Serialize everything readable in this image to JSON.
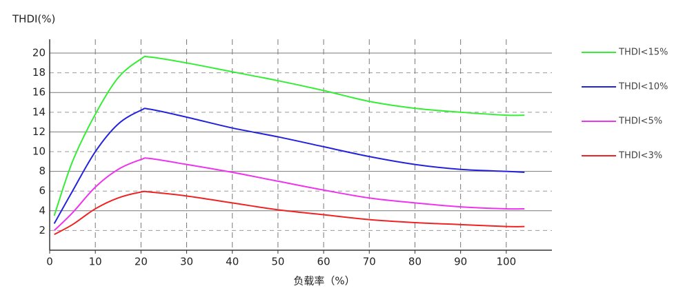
{
  "chart_data": {
    "type": "line",
    "y_label": "THDI(%)",
    "x_label": "负载率（%）",
    "x": [
      1,
      5,
      10,
      15,
      20,
      22,
      30,
      40,
      50,
      60,
      70,
      80,
      90,
      100,
      104
    ],
    "series": [
      {
        "name": "THDI<15%",
        "color": "#33ee33",
        "values": [
          3.5,
          9,
          13.8,
          17.5,
          19.4,
          19.6,
          19,
          18.1,
          17.2,
          16.2,
          15.1,
          14.4,
          14,
          13.7,
          13.7
        ]
      },
      {
        "name": "THDI<10%",
        "color": "#2222dd",
        "values": [
          2.7,
          6,
          10,
          12.8,
          14.2,
          14.3,
          13.5,
          12.4,
          11.5,
          10.5,
          9.5,
          8.7,
          8.2,
          8,
          7.9
        ]
      },
      {
        "name": "THDI<5%",
        "color": "#ee33ee",
        "values": [
          2,
          3.8,
          6.4,
          8.2,
          9.2,
          9.3,
          8.7,
          7.9,
          7,
          6.1,
          5.3,
          4.8,
          4.4,
          4.2,
          4.2
        ]
      },
      {
        "name": "THDI<3%",
        "color": "#ee2222",
        "values": [
          1.6,
          2.6,
          4.2,
          5.3,
          5.9,
          5.9,
          5.5,
          4.8,
          4.1,
          3.6,
          3.1,
          2.8,
          2.6,
          2.4,
          2.4
        ]
      }
    ],
    "xlim": [
      0,
      110
    ],
    "xticks": [
      0,
      10,
      20,
      30,
      40,
      50,
      60,
      70,
      80,
      90,
      100
    ],
    "ylim": [
      0,
      21.4
    ],
    "yticks": [
      2,
      4,
      6,
      8,
      10,
      12,
      14,
      16,
      18,
      20
    ],
    "grid": true
  }
}
